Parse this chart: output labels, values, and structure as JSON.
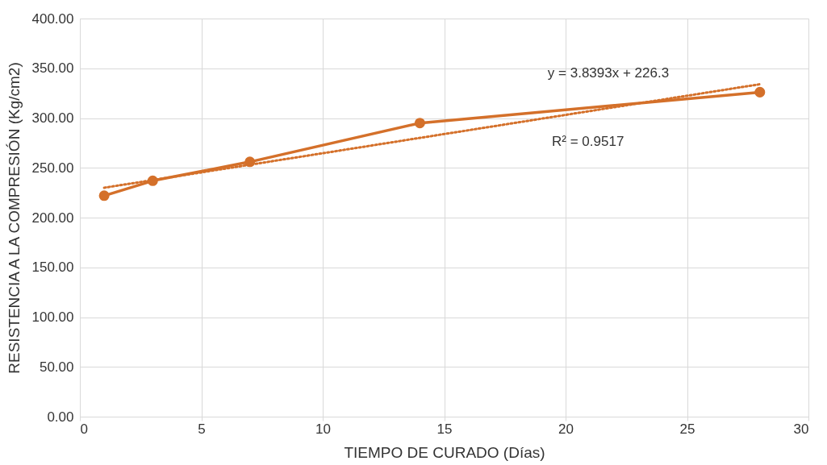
{
  "chart_data": {
    "type": "line",
    "xlabel": "TIEMPO DE CURADO (Días)",
    "ylabel": "RESISTENCIA A LA COMPRESIÓN (Kg/cm2)",
    "x": [
      1,
      3,
      7,
      14,
      28
    ],
    "series": [
      {
        "color": "#d4702a",
        "values": [
          222,
          237,
          256,
          295,
          326
        ],
        "marker": "circle",
        "line_style": "solid"
      },
      {
        "color": "#d4702a",
        "x": [
          1,
          28
        ],
        "values": [
          230,
          334
        ],
        "marker": "none",
        "line_style": "dotted"
      }
    ],
    "annotations": [
      "y = 3.8393x + 226.3",
      "R² = 0.9517"
    ],
    "xlim": [
      0,
      30
    ],
    "xticks": [
      0,
      5,
      10,
      15,
      20,
      25,
      30
    ],
    "ylim": [
      0,
      400
    ],
    "yticks": [
      {
        "value": 0,
        "label": "0.00"
      },
      {
        "value": 50,
        "label": "50.00"
      },
      {
        "value": 100,
        "label": "100.00"
      },
      {
        "value": 150,
        "label": "150.00"
      },
      {
        "value": 200,
        "label": "200.00"
      },
      {
        "value": 250,
        "label": "250.00"
      },
      {
        "value": 300,
        "label": "300.00"
      },
      {
        "value": 350,
        "label": "350.00"
      },
      {
        "value": 400,
        "label": "400.00"
      }
    ],
    "grid": true
  }
}
